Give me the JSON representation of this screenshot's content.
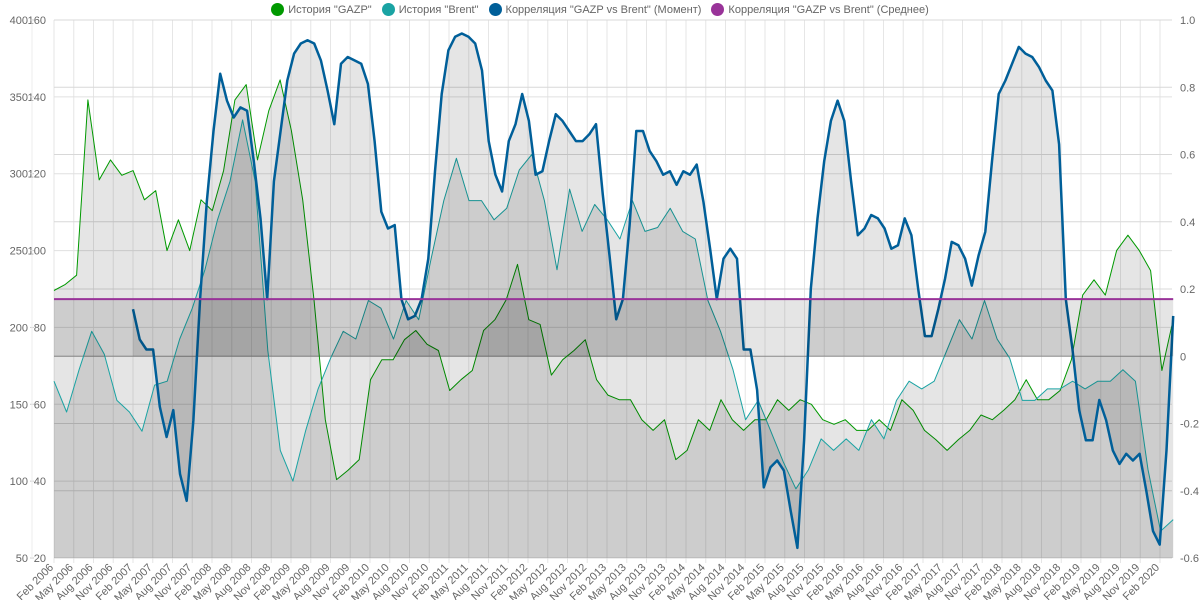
{
  "chart_data": {
    "type": "line",
    "legend_position": "top",
    "grid": true,
    "x_ticks": [
      "Feb 2006",
      "May 2006",
      "Aug 2006",
      "Nov 2006",
      "Feb 2007",
      "May 2007",
      "Aug 2007",
      "Nov 2007",
      "Feb 2008",
      "May 2008",
      "Aug 2008",
      "Nov 2008",
      "Feb 2009",
      "May 2009",
      "Aug 2009",
      "Nov 2009",
      "Feb 2010",
      "May 2010",
      "Aug 2010",
      "Nov 2010",
      "Feb 2011",
      "May 2011",
      "Aug 2011",
      "Nov 2011",
      "Feb 2012",
      "May 2012",
      "Aug 2012",
      "Nov 2012",
      "Feb 2013",
      "May 2013",
      "Aug 2013",
      "Nov 2013",
      "Feb 2014",
      "May 2014",
      "Aug 2014",
      "Nov 2014",
      "Feb 2015",
      "May 2015",
      "Aug 2015",
      "Nov 2015",
      "Feb 2016",
      "May 2016",
      "Aug 2016",
      "Nov 2016",
      "Feb 2017",
      "May 2017",
      "Aug 2017",
      "Nov 2017",
      "Feb 2018",
      "May 2018",
      "Aug 2018",
      "Nov 2018",
      "Feb 2019",
      "May 2019",
      "Aug 2019",
      "Nov 2019",
      "Feb 2020"
    ],
    "x_range_months_from_feb_2006": [
      0,
      170
    ],
    "axes": {
      "gazp": {
        "ylim": [
          50,
          400
        ],
        "ticks": [
          "400",
          "350",
          "300",
          "250",
          "200",
          "150",
          "100",
          "50"
        ]
      },
      "brent": {
        "ylim": [
          20,
          160
        ],
        "ticks": [
          "160",
          "140",
          "120",
          "100",
          "80",
          "60",
          "40",
          "20"
        ]
      },
      "corr": {
        "ylim": [
          -0.6,
          1.0
        ],
        "ticks": [
          "1.0",
          "0.8",
          "0.6",
          "0.4",
          "0.2",
          "0",
          "-0.2",
          "-0.4",
          "-0.6"
        ]
      }
    },
    "series": [
      {
        "name": "История \"GAZP\"",
        "axis": "gazp",
        "color": "#009900",
        "start_month": 0,
        "end_month": 170,
        "values": [
          224,
          228,
          234,
          348,
          296,
          309,
          299,
          302,
          283,
          289,
          250,
          270,
          250,
          283,
          276,
          302,
          348,
          358,
          309,
          341,
          361,
          328,
          283,
          218,
          140,
          101,
          107,
          114,
          166,
          179,
          179,
          192,
          198,
          189,
          185,
          159,
          166,
          172,
          198,
          205,
          218,
          241,
          205,
          202,
          169,
          179,
          185,
          192,
          166,
          156,
          153,
          153,
          140,
          133,
          140,
          114,
          120,
          140,
          133,
          153,
          140,
          133,
          140,
          140,
          153,
          146,
          153,
          150,
          140,
          137,
          140,
          133,
          133,
          140,
          133,
          153,
          146,
          133,
          127,
          120,
          127,
          133,
          143,
          140,
          146,
          153,
          166,
          153,
          153,
          159,
          179,
          221,
          231,
          221,
          250,
          260,
          250,
          237,
          172,
          205
        ]
      },
      {
        "name": "История \"Brent\"",
        "axis": "brent",
        "color": "#1aa3a3",
        "start_month": 0,
        "end_month": 170,
        "values": [
          66,
          58,
          69,
          79,
          73,
          61,
          58,
          53,
          65,
          66,
          77,
          85,
          95,
          108,
          118,
          134,
          118,
          74,
          48,
          40,
          53,
          64,
          72,
          79,
          77,
          87,
          85,
          77,
          87,
          82,
          98,
          113,
          124,
          113,
          113,
          108,
          111,
          121,
          125,
          113,
          95,
          116,
          105,
          112,
          108,
          103,
          113,
          105,
          106,
          111,
          105,
          103,
          87,
          79,
          69,
          56,
          61,
          53,
          45,
          38,
          43,
          51,
          48,
          51,
          48,
          56,
          51,
          61,
          66,
          64,
          66,
          74,
          82,
          77,
          87,
          77,
          72,
          61,
          61,
          64,
          64,
          66,
          64,
          66,
          66,
          69,
          66,
          43,
          27,
          30
        ]
      },
      {
        "name": "Корреляция \"GAZP vs Brent\" (Момент)",
        "axis": "corr",
        "color": "#005f99",
        "start_month": 12,
        "end_month": 170,
        "values": [
          0.14,
          0.05,
          0.02,
          0.02,
          -0.15,
          -0.24,
          -0.16,
          -0.35,
          -0.43,
          -0.19,
          0.17,
          0.46,
          0.67,
          0.84,
          0.76,
          0.71,
          0.74,
          0.73,
          0.58,
          0.41,
          0.17,
          0.52,
          0.67,
          0.82,
          0.9,
          0.93,
          0.94,
          0.93,
          0.88,
          0.79,
          0.69,
          0.87,
          0.89,
          0.88,
          0.87,
          0.81,
          0.64,
          0.43,
          0.38,
          0.39,
          0.17,
          0.11,
          0.12,
          0.17,
          0.29,
          0.55,
          0.78,
          0.91,
          0.95,
          0.96,
          0.95,
          0.93,
          0.85,
          0.64,
          0.54,
          0.49,
          0.64,
          0.69,
          0.78,
          0.7,
          0.54,
          0.55,
          0.64,
          0.72,
          0.7,
          0.67,
          0.64,
          0.64,
          0.66,
          0.69,
          0.48,
          0.3,
          0.11,
          0.17,
          0.39,
          0.67,
          0.67,
          0.61,
          0.58,
          0.54,
          0.55,
          0.51,
          0.55,
          0.54,
          0.57,
          0.46,
          0.32,
          0.17,
          0.29,
          0.32,
          0.29,
          0.02,
          0.02,
          -0.1,
          -0.39,
          -0.33,
          -0.31,
          -0.34,
          -0.46,
          -0.57,
          -0.25,
          0.2,
          0.41,
          0.58,
          0.7,
          0.76,
          0.7,
          0.52,
          0.36,
          0.38,
          0.42,
          0.41,
          0.38,
          0.32,
          0.33,
          0.41,
          0.36,
          0.2,
          0.06,
          0.06,
          0.14,
          0.23,
          0.34,
          0.33,
          0.29,
          0.21,
          0.3,
          0.37,
          0.58,
          0.78,
          0.82,
          0.87,
          0.92,
          0.9,
          0.89,
          0.86,
          0.82,
          0.79,
          0.63,
          0.17,
          0.02,
          -0.16,
          -0.25,
          -0.25,
          -0.13,
          -0.19,
          -0.28,
          -0.32,
          -0.29,
          -0.31,
          -0.29,
          -0.4,
          -0.52,
          -0.56,
          -0.28,
          0.12
        ]
      },
      {
        "name": "Корреляция \"GAZP vs Brent\" (Среднее)",
        "axis": "corr",
        "color": "#993399",
        "start_month": 0,
        "end_month": 170,
        "values": [
          0.17,
          0.17
        ]
      }
    ]
  }
}
